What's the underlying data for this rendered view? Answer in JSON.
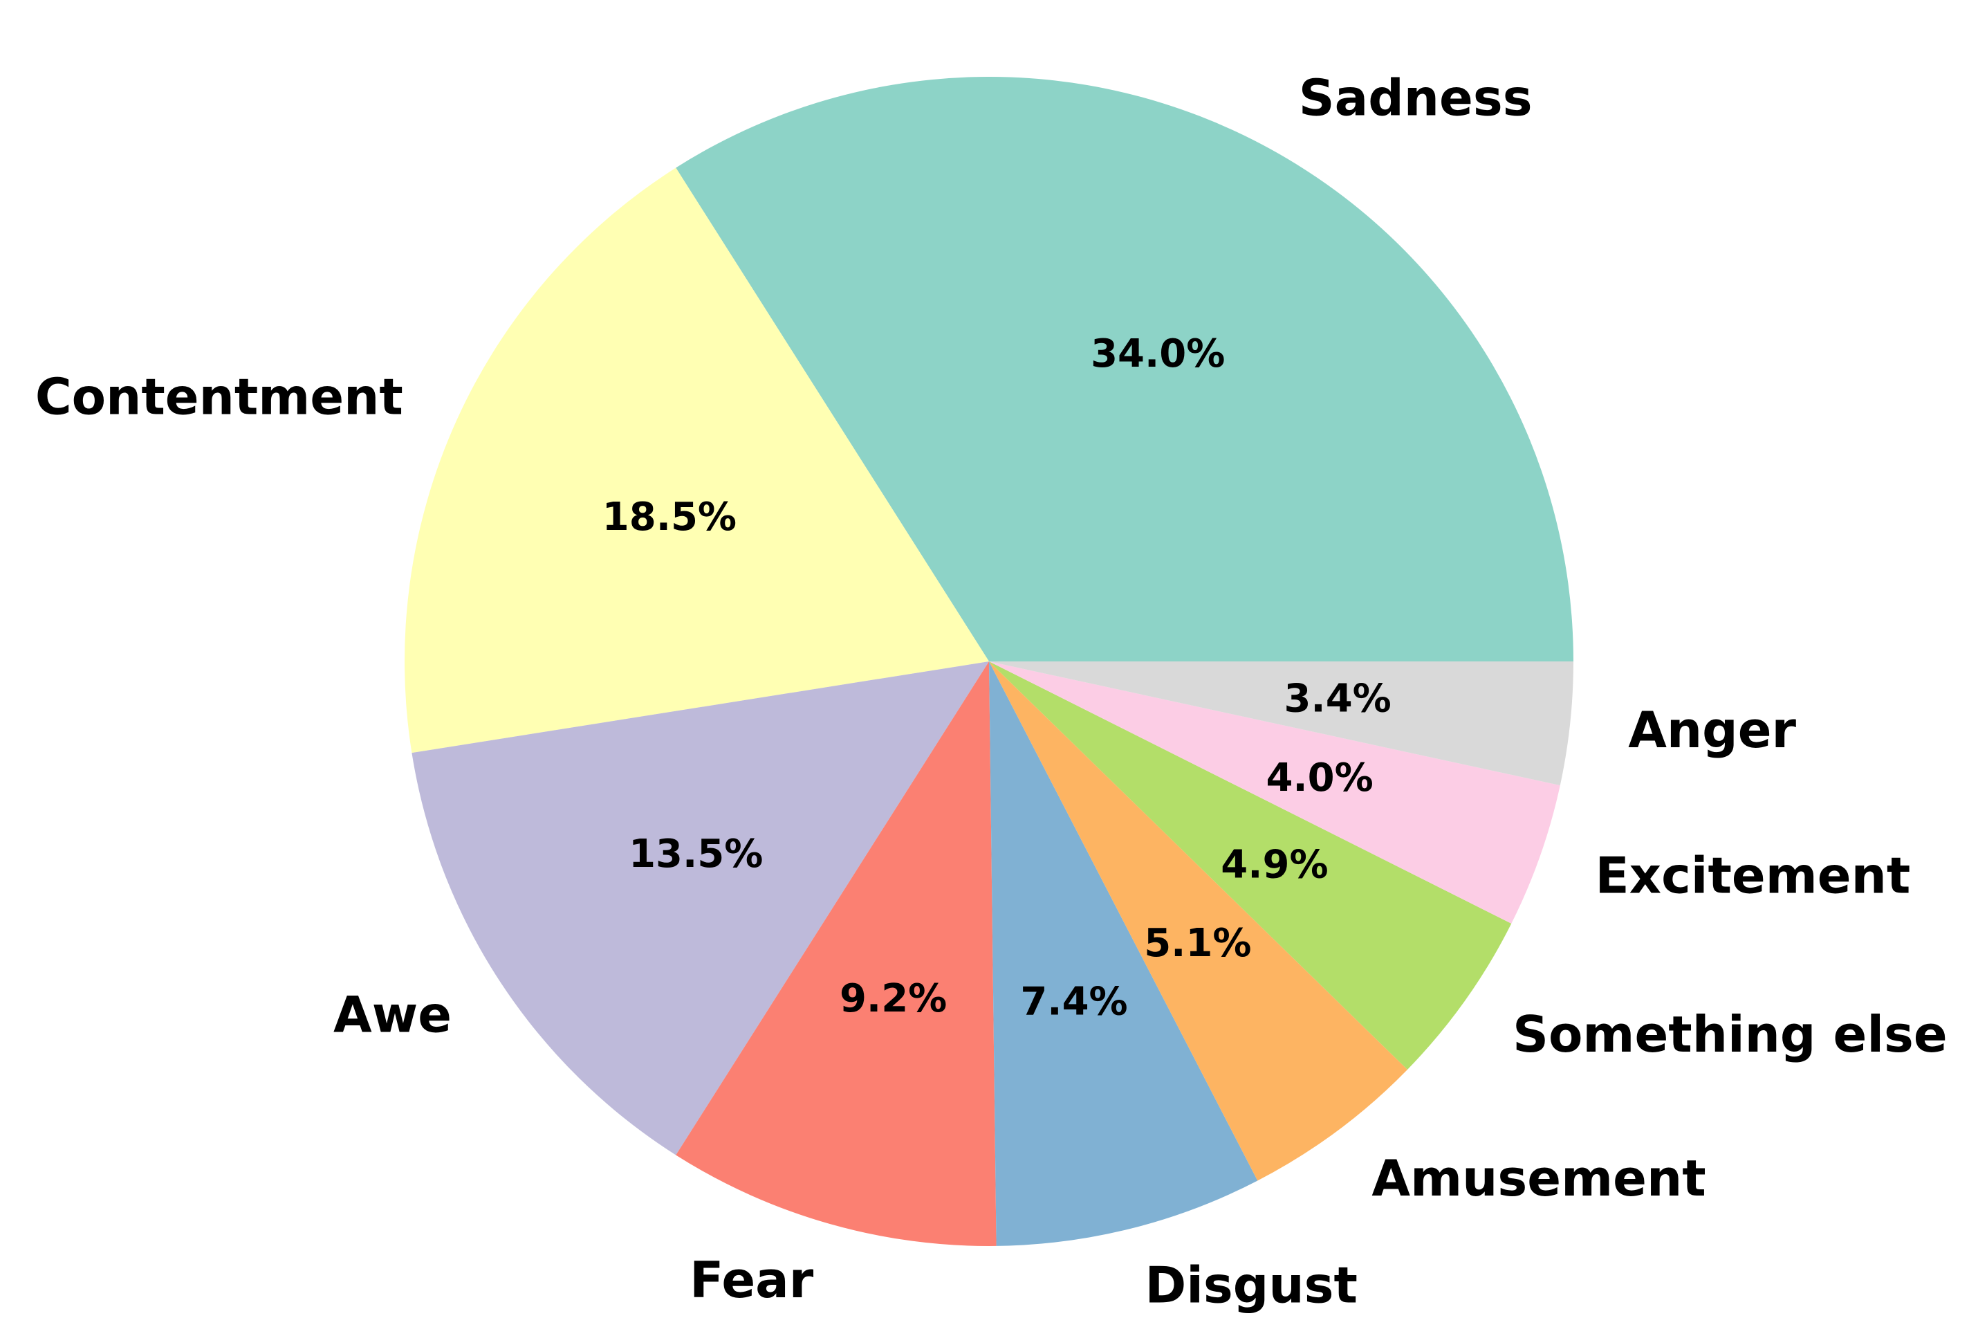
{
  "chart_data": {
    "type": "pie",
    "title": "",
    "start_angle_deg": 0,
    "direction": "counterclockwise",
    "legend": "none",
    "slices": [
      {
        "label": "Sadness",
        "value": 34.0,
        "pct_label": "34.0%",
        "color": "#8dd3c7"
      },
      {
        "label": "Contentment",
        "value": 18.5,
        "pct_label": "18.5%",
        "color": "#ffffb3"
      },
      {
        "label": "Awe",
        "value": 13.5,
        "pct_label": "13.5%",
        "color": "#bebada"
      },
      {
        "label": "Fear",
        "value": 9.2,
        "pct_label": "9.2%",
        "color": "#fb8072"
      },
      {
        "label": "Disgust",
        "value": 7.4,
        "pct_label": "7.4%",
        "color": "#80b1d3"
      },
      {
        "label": "Amusement",
        "value": 5.1,
        "pct_label": "5.1%",
        "color": "#fdb462"
      },
      {
        "label": "Something else",
        "value": 4.9,
        "pct_label": "4.9%",
        "color": "#b3de69"
      },
      {
        "label": "Excitement",
        "value": 4.0,
        "pct_label": "4.0%",
        "color": "#fccde5"
      },
      {
        "label": "Anger",
        "value": 3.4,
        "pct_label": "3.4%",
        "color": "#d9d9d9"
      }
    ]
  }
}
